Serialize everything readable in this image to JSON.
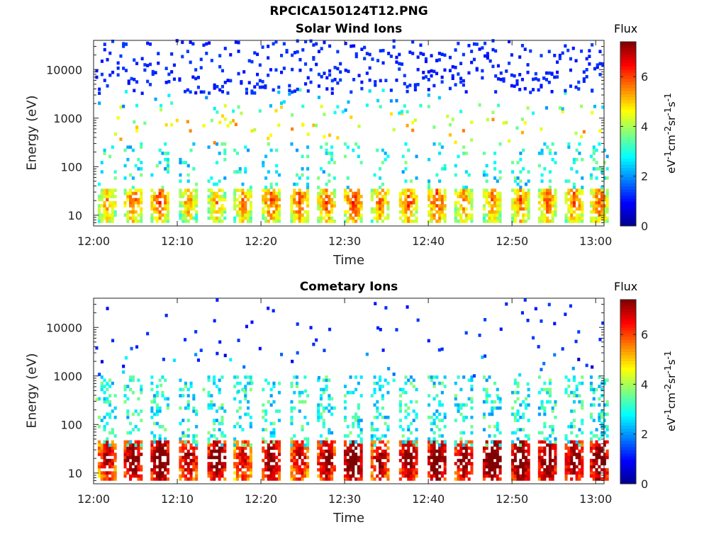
{
  "title": "RPCICA150124T12.PNG",
  "colormap": [
    "#00008f",
    "#0000ff",
    "#0080ff",
    "#00ffff",
    "#80ff80",
    "#ffff00",
    "#ff8000",
    "#ff0000",
    "#800000"
  ],
  "chart_data": [
    {
      "type": "heatmap",
      "title": "Solar Wind Ions",
      "xlabel": "Time",
      "ylabel": "Energy (eV)",
      "x_ticks": [
        "12:00",
        "12:10",
        "12:20",
        "12:30",
        "12:40",
        "12:50",
        "13:00"
      ],
      "xlim": [
        "12:00",
        "13:01"
      ],
      "y_scale": "log",
      "y_ticks": [
        10,
        100,
        1000,
        10000
      ],
      "ylim": [
        6,
        40000
      ],
      "colorbar": {
        "title": "Flux",
        "label": "eV-1cm-2sr-1s-1",
        "ticks": [
          0,
          2,
          4,
          6
        ],
        "range": [
          0,
          7.4
        ]
      },
      "bursts": [
        {
          "t": 1.5,
          "low": 3.8
        },
        {
          "t": 4.6,
          "low": 4.2
        },
        {
          "t": 7.8,
          "low": 4.4
        },
        {
          "t": 11.2,
          "low": 3.8
        },
        {
          "t": 14.6,
          "low": 3.8
        },
        {
          "t": 17.7,
          "low": 4.0
        },
        {
          "t": 21.1,
          "low": 4.4
        },
        {
          "t": 24.5,
          "low": 4.4
        },
        {
          "t": 27.7,
          "low": 4.2
        },
        {
          "t": 30.9,
          "low": 4.5
        },
        {
          "t": 34.1,
          "low": 4.1
        },
        {
          "t": 37.5,
          "low": 4.4
        },
        {
          "t": 40.9,
          "low": 4.5
        },
        {
          "t": 44.1,
          "low": 4.0
        },
        {
          "t": 47.5,
          "low": 4.0
        },
        {
          "t": 50.9,
          "low": 4.2
        },
        {
          "t": 54.1,
          "low": 4.2
        },
        {
          "t": 57.3,
          "low": 4.3
        },
        {
          "t": 60.3,
          "low": 4.2
        }
      ],
      "mid_bands": [
        {
          "energy": 500,
          "value": 4.8
        },
        {
          "energy": 1000,
          "value": 4.3
        },
        {
          "energy": 2000,
          "value": 2.5
        }
      ]
    },
    {
      "type": "heatmap",
      "title": "Cometary Ions",
      "xlabel": "Time",
      "ylabel": "Energy (eV)",
      "x_ticks": [
        "12:00",
        "12:10",
        "12:20",
        "12:30",
        "12:40",
        "12:50",
        "13:00"
      ],
      "xlim": [
        "12:00",
        "13:01"
      ],
      "y_scale": "log",
      "y_ticks": [
        10,
        100,
        1000,
        10000
      ],
      "ylim": [
        6,
        40000
      ],
      "colorbar": {
        "title": "Flux",
        "label": "eV-1cm-2sr-1s-1",
        "ticks": [
          0,
          2,
          4,
          6
        ],
        "range": [
          0,
          7.4
        ]
      },
      "bursts": [
        {
          "t": 1.5,
          "low": 5.6
        },
        {
          "t": 4.6,
          "low": 6.2
        },
        {
          "t": 7.8,
          "low": 6.6
        },
        {
          "t": 11.2,
          "low": 5.8
        },
        {
          "t": 14.6,
          "low": 6.4
        },
        {
          "t": 17.7,
          "low": 5.4
        },
        {
          "t": 21.1,
          "low": 6.2
        },
        {
          "t": 24.5,
          "low": 5.6
        },
        {
          "t": 27.7,
          "low": 6.0
        },
        {
          "t": 30.9,
          "low": 6.6
        },
        {
          "t": 34.1,
          "low": 5.8
        },
        {
          "t": 37.5,
          "low": 6.2
        },
        {
          "t": 40.9,
          "low": 6.6
        },
        {
          "t": 44.1,
          "low": 6.0
        },
        {
          "t": 47.5,
          "low": 6.8
        },
        {
          "t": 50.9,
          "low": 6.6
        },
        {
          "t": 54.1,
          "low": 6.4
        },
        {
          "t": 57.3,
          "low": 6.2
        },
        {
          "t": 60.3,
          "low": 6.4
        }
      ],
      "mid_bands": [
        {
          "energy": 2200,
          "value": 1.2
        },
        {
          "energy": 1500,
          "value": 2.0
        },
        {
          "energy": 500,
          "value": 3.2
        }
      ]
    }
  ]
}
